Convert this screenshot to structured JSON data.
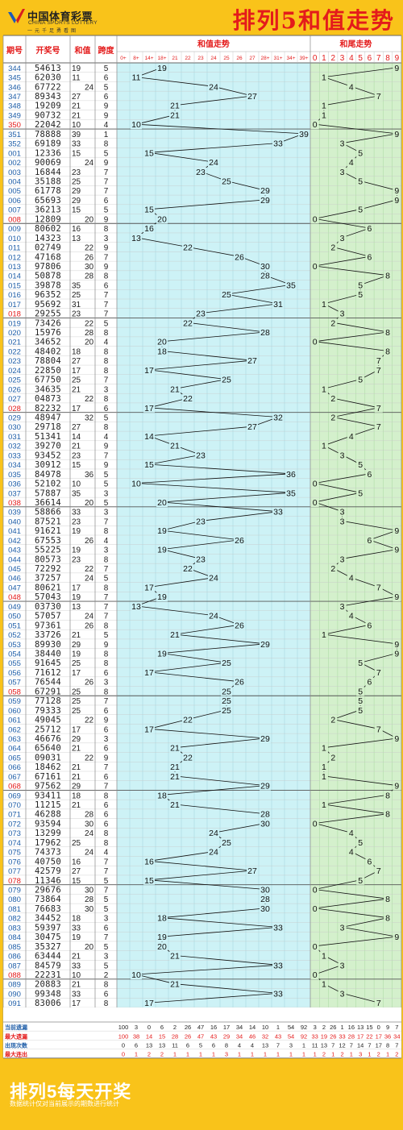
{
  "header": {
    "logo_cn": "中国体育彩票",
    "logo_en": "CHINA SPORTS LOTTERY",
    "logo_slogan": "一元千足勇看图",
    "title": "排列5和值走势"
  },
  "table": {
    "col_labels": [
      "期号",
      "开奖号",
      "和值",
      "跨度"
    ],
    "group_labels": [
      "和值走势",
      "和尾走势"
    ],
    "sum_bins": [
      "0+",
      "8+",
      "14+",
      "18+",
      "21",
      "22",
      "23",
      "24",
      "25",
      "26",
      "27",
      "28+",
      "31+",
      "34+",
      "39+"
    ],
    "tail_digits": [
      "0",
      "1",
      "2",
      "3",
      "4",
      "5",
      "6",
      "7",
      "8",
      "9"
    ],
    "highlight_color": "#e41b1b",
    "rows": [
      [
        "344",
        "54613",
        "19",
        "5"
      ],
      [
        "345",
        "62030",
        "11",
        "6"
      ],
      [
        "346",
        "67722",
        "24",
        "5"
      ],
      [
        "347",
        "89343",
        "27",
        "6"
      ],
      [
        "348",
        "19209",
        "21",
        "9"
      ],
      [
        "349",
        "90732",
        "21",
        "9"
      ],
      [
        "350",
        "22042",
        "10",
        "4"
      ],
      [
        "351",
        "78888",
        "39",
        "1"
      ],
      [
        "352",
        "69189",
        "33",
        "8"
      ],
      [
        "001",
        "12336",
        "15",
        "5"
      ],
      [
        "002",
        "90069",
        "24",
        "9"
      ],
      [
        "003",
        "16844",
        "23",
        "7"
      ],
      [
        "004",
        "35188",
        "25",
        "7"
      ],
      [
        "005",
        "61778",
        "29",
        "7"
      ],
      [
        "006",
        "65693",
        "29",
        "6"
      ],
      [
        "007",
        "36213",
        "15",
        "5"
      ],
      [
        "008",
        "12809",
        "20",
        "9"
      ],
      [
        "009",
        "80602",
        "16",
        "8"
      ],
      [
        "010",
        "14323",
        "13",
        "3"
      ],
      [
        "011",
        "02749",
        "22",
        "9"
      ],
      [
        "012",
        "47168",
        "26",
        "7"
      ],
      [
        "013",
        "97806",
        "30",
        "9"
      ],
      [
        "014",
        "50878",
        "28",
        "8"
      ],
      [
        "015",
        "39878",
        "35",
        "6"
      ],
      [
        "016",
        "96352",
        "25",
        "7"
      ],
      [
        "017",
        "95692",
        "31",
        "7"
      ],
      [
        "018",
        "29255",
        "23",
        "7"
      ],
      [
        "019",
        "73426",
        "22",
        "5"
      ],
      [
        "020",
        "15976",
        "28",
        "8"
      ],
      [
        "021",
        "34652",
        "20",
        "4"
      ],
      [
        "022",
        "48402",
        "18",
        "8"
      ],
      [
        "023",
        "78804",
        "27",
        "8"
      ],
      [
        "024",
        "22850",
        "17",
        "8"
      ],
      [
        "025",
        "67750",
        "25",
        "7"
      ],
      [
        "026",
        "34635",
        "21",
        "3"
      ],
      [
        "027",
        "04873",
        "22",
        "8"
      ],
      [
        "028",
        "82232",
        "17",
        "6"
      ],
      [
        "029",
        "48947",
        "32",
        "5"
      ],
      [
        "030",
        "29718",
        "27",
        "8"
      ],
      [
        "031",
        "51341",
        "14",
        "4"
      ],
      [
        "032",
        "39270",
        "21",
        "9"
      ],
      [
        "033",
        "93452",
        "23",
        "7"
      ],
      [
        "034",
        "30912",
        "15",
        "9"
      ],
      [
        "035",
        "84978",
        "36",
        "5"
      ],
      [
        "036",
        "52102",
        "10",
        "5"
      ],
      [
        "037",
        "57887",
        "35",
        "3"
      ],
      [
        "038",
        "36614",
        "20",
        "5"
      ],
      [
        "039",
        "58866",
        "33",
        "3"
      ],
      [
        "040",
        "87521",
        "23",
        "7"
      ],
      [
        "041",
        "91621",
        "19",
        "8"
      ],
      [
        "042",
        "67553",
        "26",
        "4"
      ],
      [
        "043",
        "55225",
        "19",
        "3"
      ],
      [
        "044",
        "80573",
        "23",
        "8"
      ],
      [
        "045",
        "72292",
        "22",
        "7"
      ],
      [
        "046",
        "37257",
        "24",
        "5"
      ],
      [
        "047",
        "80621",
        "17",
        "8"
      ],
      [
        "048",
        "57043",
        "19",
        "7"
      ],
      [
        "049",
        "03730",
        "13",
        "7"
      ],
      [
        "050",
        "57057",
        "24",
        "7"
      ],
      [
        "051",
        "97361",
        "26",
        "8"
      ],
      [
        "052",
        "33726",
        "21",
        "5"
      ],
      [
        "053",
        "89930",
        "29",
        "9"
      ],
      [
        "054",
        "38440",
        "19",
        "8"
      ],
      [
        "055",
        "91645",
        "25",
        "8"
      ],
      [
        "056",
        "71612",
        "17",
        "6"
      ],
      [
        "057",
        "76544",
        "26",
        "3"
      ],
      [
        "058",
        "67291",
        "25",
        "8"
      ],
      [
        "059",
        "77128",
        "25",
        "7"
      ],
      [
        "060",
        "79333",
        "25",
        "6"
      ],
      [
        "061",
        "49045",
        "22",
        "9"
      ],
      [
        "062",
        "25712",
        "17",
        "6"
      ],
      [
        "063",
        "46676",
        "29",
        "3"
      ],
      [
        "064",
        "65640",
        "21",
        "6"
      ],
      [
        "065",
        "09031",
        "22",
        "9"
      ],
      [
        "066",
        "18462",
        "21",
        "7"
      ],
      [
        "067",
        "67161",
        "21",
        "6"
      ],
      [
        "068",
        "97562",
        "29",
        "7"
      ],
      [
        "069",
        "93411",
        "18",
        "8"
      ],
      [
        "070",
        "11215",
        "21",
        "6"
      ],
      [
        "071",
        "46288",
        "28",
        "6"
      ],
      [
        "072",
        "93594",
        "30",
        "6"
      ],
      [
        "073",
        "13299",
        "24",
        "8"
      ],
      [
        "074",
        "17962",
        "25",
        "8"
      ],
      [
        "075",
        "74373",
        "24",
        "4"
      ],
      [
        "076",
        "40750",
        "16",
        "7"
      ],
      [
        "077",
        "42579",
        "27",
        "7"
      ],
      [
        "078",
        "11346",
        "15",
        "5"
      ],
      [
        "079",
        "29676",
        "30",
        "7"
      ],
      [
        "080",
        "73864",
        "28",
        "5"
      ],
      [
        "081",
        "76683",
        "30",
        "5"
      ],
      [
        "082",
        "34452",
        "18",
        "3"
      ],
      [
        "083",
        "59397",
        "33",
        "6"
      ],
      [
        "084",
        "30475",
        "19",
        "7"
      ],
      [
        "085",
        "35327",
        "20",
        "5"
      ],
      [
        "086",
        "63444",
        "21",
        "3"
      ],
      [
        "087",
        "84579",
        "33",
        "5"
      ],
      [
        "088",
        "22231",
        "10",
        "2"
      ],
      [
        "089",
        "20883",
        "21",
        "8"
      ],
      [
        "090",
        "99348",
        "33",
        "6"
      ],
      [
        "091",
        "83006",
        "17",
        "8"
      ]
    ]
  },
  "stats": {
    "labels": [
      "当前遗漏",
      "最大遗漏",
      "出现次数",
      "最大连出"
    ],
    "sum_rows": [
      [
        "100",
        "3",
        "0",
        "6",
        "2",
        "26",
        "47",
        "16",
        "17",
        "34",
        "14",
        "10",
        "1",
        "54",
        "92"
      ],
      [
        "100",
        "38",
        "14",
        "15",
        "28",
        "26",
        "47",
        "43",
        "29",
        "34",
        "46",
        "32",
        "43",
        "54",
        "92"
      ],
      [
        "0",
        "6",
        "13",
        "13",
        "11",
        "6",
        "5",
        "6",
        "8",
        "4",
        "4",
        "13",
        "7",
        "3",
        "1"
      ],
      [
        "0",
        "1",
        "2",
        "2",
        "1",
        "1",
        "1",
        "1",
        "3",
        "1",
        "1",
        "1",
        "1",
        "1",
        "1"
      ]
    ],
    "tail_rows": [
      [
        "3",
        "2",
        "26",
        "1",
        "16",
        "13",
        "15",
        "0",
        "9",
        "7"
      ],
      [
        "33",
        "19",
        "26",
        "33",
        "28",
        "17",
        "22",
        "17",
        "36",
        "34"
      ],
      [
        "11",
        "13",
        "7",
        "12",
        "7",
        "14",
        "7",
        "17",
        "8",
        "7"
      ],
      [
        "1",
        "2",
        "1",
        "2",
        "1",
        "3",
        "1",
        "2",
        "1",
        "2"
      ]
    ]
  },
  "chart_data": [
    {
      "type": "line",
      "title": "和值走势",
      "x": [
        "344",
        "345",
        "346",
        "347",
        "348",
        "349",
        "350",
        "351",
        "352",
        "001",
        "002",
        "003",
        "004",
        "005",
        "006",
        "007",
        "008",
        "009",
        "010",
        "011",
        "012",
        "013",
        "014",
        "015",
        "016",
        "017",
        "018",
        "019",
        "020",
        "021",
        "022",
        "023",
        "024",
        "025",
        "026",
        "027",
        "028",
        "029",
        "030",
        "031",
        "032",
        "033",
        "034",
        "035",
        "036",
        "037",
        "038",
        "039",
        "040",
        "041",
        "042",
        "043",
        "044",
        "045",
        "046",
        "047",
        "048",
        "049",
        "050",
        "051",
        "052",
        "053",
        "054",
        "055",
        "056",
        "057",
        "058",
        "059",
        "060",
        "061",
        "062",
        "063",
        "064",
        "065",
        "066",
        "067",
        "068",
        "069",
        "070",
        "071",
        "072",
        "073",
        "074",
        "075",
        "076",
        "077",
        "078",
        "079",
        "080",
        "081",
        "082",
        "083",
        "084",
        "085",
        "086",
        "087",
        "088",
        "089",
        "090",
        "091"
      ],
      "values": [
        19,
        11,
        24,
        27,
        21,
        21,
        10,
        39,
        33,
        15,
        24,
        23,
        25,
        29,
        29,
        15,
        20,
        16,
        13,
        22,
        26,
        30,
        28,
        35,
        25,
        31,
        23,
        22,
        28,
        20,
        18,
        27,
        17,
        25,
        21,
        22,
        17,
        32,
        27,
        14,
        21,
        23,
        15,
        36,
        10,
        35,
        20,
        33,
        23,
        19,
        26,
        19,
        23,
        22,
        24,
        17,
        19,
        13,
        24,
        26,
        21,
        29,
        19,
        25,
        17,
        26,
        25,
        25,
        25,
        22,
        17,
        29,
        21,
        22,
        21,
        21,
        29,
        18,
        21,
        28,
        30,
        24,
        25,
        24,
        16,
        27,
        15,
        30,
        28,
        30,
        18,
        33,
        19,
        20,
        21,
        33,
        10,
        21,
        33,
        17
      ]
    },
    {
      "type": "line",
      "title": "和尾走势",
      "x_range": [
        0,
        9
      ],
      "values": [
        9,
        1,
        4,
        7,
        1,
        1,
        0,
        9,
        3,
        5,
        4,
        3,
        5,
        9,
        9,
        5,
        0,
        6,
        3,
        2,
        6,
        0,
        8,
        5,
        5,
        1,
        3,
        2,
        8,
        0,
        8,
        7,
        7,
        5,
        1,
        2,
        7,
        2,
        7,
        4,
        1,
        3,
        5,
        6,
        0,
        5,
        0,
        3,
        3,
        9,
        6,
        9,
        3,
        2,
        4,
        7,
        9,
        3,
        4,
        6,
        1,
        9,
        9,
        5,
        7,
        6,
        5,
        5,
        5,
        2,
        7,
        9,
        1,
        2,
        1,
        1,
        9,
        8,
        1,
        8,
        0,
        4,
        5,
        4,
        6,
        7,
        5,
        0,
        8,
        0,
        8,
        3,
        9,
        0,
        1,
        3,
        0,
        1,
        3,
        7
      ]
    }
  ],
  "footer": {
    "title": "排列5每天开奖",
    "note": "数据统计仅对当前展示的期数进行统计"
  }
}
